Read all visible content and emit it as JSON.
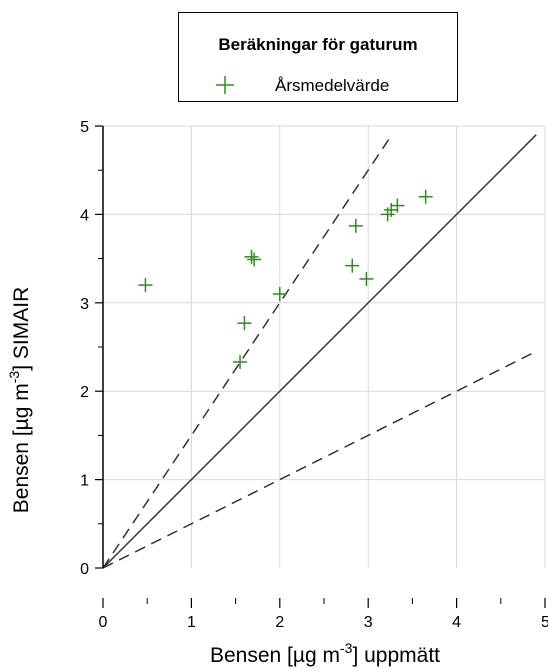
{
  "chart_data": {
    "type": "scatter",
    "title": "",
    "legend": {
      "title": "Beräkningar för gaturum",
      "entries": [
        {
          "label": "Årsmedelvärde",
          "color": "#2e8b20",
          "marker": "plus"
        }
      ]
    },
    "xlabel": {
      "pre": "Bensen [µg m",
      "sup": "-3",
      "post": "] uppmätt"
    },
    "ylabel": {
      "pre": "Bensen [µg m",
      "sup": "-3",
      "post": "] SIMAIR"
    },
    "xlim": [
      0,
      5
    ],
    "ylim": [
      0,
      5
    ],
    "xticks": [
      "0",
      "1",
      "2",
      "3",
      "4",
      "5"
    ],
    "yticks": [
      "0",
      "1",
      "2",
      "3",
      "4",
      "5"
    ],
    "grid": true,
    "reference_lines": [
      {
        "slope": 1,
        "style": "solid"
      },
      {
        "slope": 1.5,
        "style": "dashed"
      },
      {
        "slope": 0.5,
        "style": "dashed"
      }
    ],
    "series": [
      {
        "marker_color": "#2e8b20",
        "points": [
          {
            "x": 0.48,
            "y": 3.2
          },
          {
            "x": 1.55,
            "y": 2.33
          },
          {
            "x": 1.6,
            "y": 2.77
          },
          {
            "x": 1.68,
            "y": 3.52
          },
          {
            "x": 1.71,
            "y": 3.49
          },
          {
            "x": 2.0,
            "y": 3.1
          },
          {
            "x": 2.82,
            "y": 3.42
          },
          {
            "x": 2.86,
            "y": 3.87
          },
          {
            "x": 2.98,
            "y": 3.27
          },
          {
            "x": 3.22,
            "y": 4.0
          },
          {
            "x": 3.26,
            "y": 4.05
          },
          {
            "x": 3.33,
            "y": 4.1
          },
          {
            "x": 3.65,
            "y": 4.2
          }
        ]
      }
    ]
  }
}
